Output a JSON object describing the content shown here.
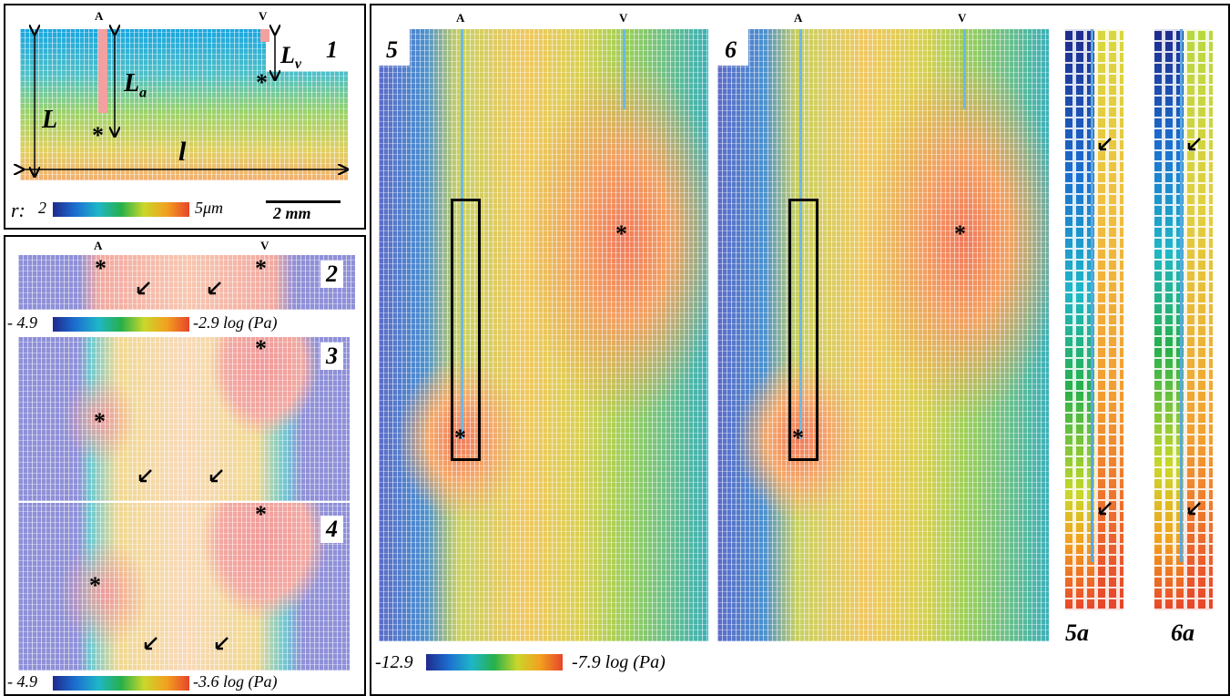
{
  "panel1": {
    "number": "1",
    "label_a": "A",
    "label_v": "V",
    "dim_L": "L",
    "dim_La": "L",
    "dim_La_sub": "a",
    "dim_Lv": "L",
    "dim_Lv_sub": "v",
    "dim_l": "l",
    "colorbar_prefix": "r:",
    "colorbar_min": "2",
    "colorbar_max": "5μm",
    "scalebar": "2 mm"
  },
  "panel2": {
    "number": "2",
    "label_a": "A",
    "label_v": "V",
    "colorbar_min": "- 4.9",
    "colorbar_max": "-2.9 log (Pa)"
  },
  "panel3": {
    "number": "3"
  },
  "panel4": {
    "number": "4",
    "colorbar_min": "- 4.9",
    "colorbar_max": "-3.6 log (Pa)"
  },
  "panel5": {
    "number": "5",
    "label_a": "A",
    "label_v": "V",
    "colorbar_min": "-12.9",
    "colorbar_max": "-7.9 log (Pa)"
  },
  "panel6": {
    "number": "6",
    "label_a": "A",
    "label_v": "V"
  },
  "panel5a": {
    "number": "5a"
  },
  "panel6a": {
    "number": "6a"
  },
  "star": "*",
  "colors": {
    "low": "#1f2a8c",
    "mid": "#27b04a",
    "high": "#e7452a",
    "outside": "#8f90d8"
  }
}
